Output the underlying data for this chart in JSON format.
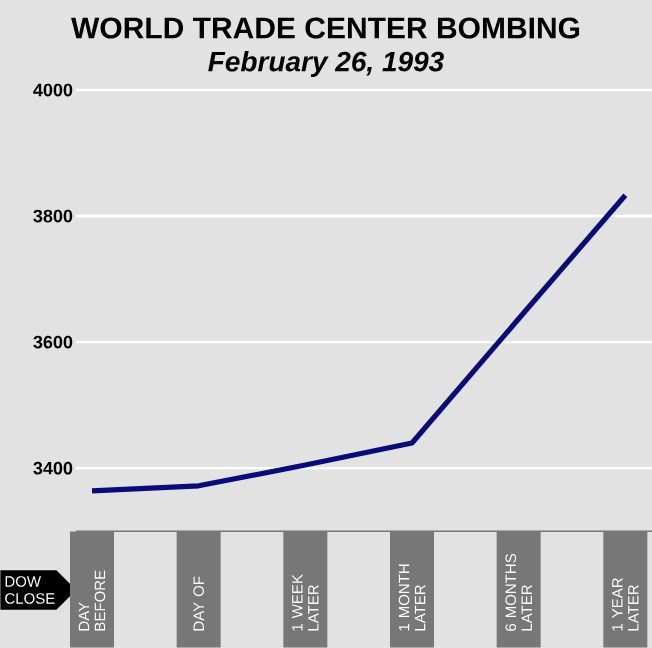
{
  "chart_data": {
    "type": "line",
    "title": "WORLD TRADE CENTER BOMBING",
    "subtitle": "February 26, 1993",
    "categories": [
      "DAY BEFORE",
      "DAY OF",
      "1 WEEK LATER",
      "1 MONTH LATER",
      "6 MONTHS LATER",
      "1 YEAR LATER"
    ],
    "values": [
      3364,
      3372,
      3405,
      3440,
      3637,
      3833
    ],
    "color": "#0a0a78",
    "ylim": [
      3300,
      4000
    ],
    "yticks": [
      3400,
      3600,
      3800,
      4000
    ],
    "grid": "y",
    "annotations": [
      "DOW CLOSE"
    ]
  }
}
